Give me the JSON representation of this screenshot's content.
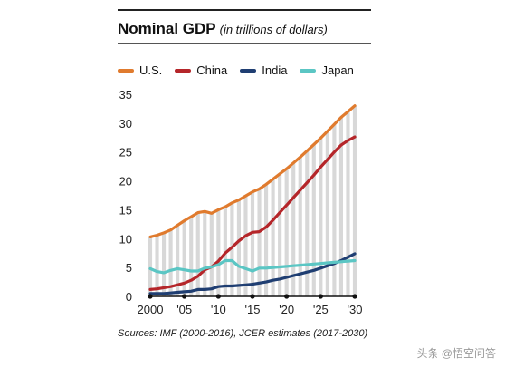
{
  "chart_data": {
    "type": "line",
    "title": "Nominal GDP",
    "subtitle": "(in trillions of dollars)",
    "xlabel": "",
    "ylabel": "",
    "xlim": [
      2000,
      2030
    ],
    "ylim": [
      0,
      35
    ],
    "y_ticks": [
      0,
      5,
      10,
      15,
      20,
      25,
      30,
      35
    ],
    "x_ticks": [
      {
        "value": 2000,
        "label": "2000"
      },
      {
        "value": 2005,
        "label": "'05"
      },
      {
        "value": 2010,
        "label": "'10"
      },
      {
        "value": 2015,
        "label": "'15"
      },
      {
        "value": 2020,
        "label": "'20"
      },
      {
        "value": 2025,
        "label": "'25"
      },
      {
        "value": 2030,
        "label": "'30"
      }
    ],
    "grid": false,
    "legend_position": "top-left",
    "background_bars": {
      "color": "#d8d8d8",
      "x": [
        2000,
        2001,
        2002,
        2003,
        2004,
        2005,
        2006,
        2007,
        2008,
        2009,
        2010,
        2011,
        2012,
        2013,
        2014,
        2015,
        2016,
        2017,
        2018,
        2019,
        2020,
        2021,
        2022,
        2023,
        2024,
        2025,
        2026,
        2027,
        2028,
        2029,
        2030
      ],
      "values": [
        10.3,
        10.6,
        11.0,
        11.5,
        12.3,
        13.1,
        13.8,
        14.5,
        14.7,
        14.4,
        15.0,
        15.5,
        16.2,
        16.7,
        17.4,
        18.1,
        18.6,
        19.4,
        20.3,
        21.2,
        22.1,
        23.1,
        24.1,
        25.2,
        26.3,
        27.4,
        28.6,
        29.8,
        31.0,
        32.0,
        33.0
      ]
    },
    "series": [
      {
        "name": "U.S.",
        "color": "#e07b2e",
        "x": [
          2000,
          2001,
          2002,
          2003,
          2004,
          2005,
          2006,
          2007,
          2008,
          2009,
          2010,
          2011,
          2012,
          2013,
          2014,
          2015,
          2016,
          2017,
          2018,
          2019,
          2020,
          2021,
          2022,
          2023,
          2024,
          2025,
          2026,
          2027,
          2028,
          2029,
          2030
        ],
        "values": [
          10.3,
          10.6,
          11.0,
          11.5,
          12.3,
          13.1,
          13.8,
          14.5,
          14.7,
          14.4,
          15.0,
          15.5,
          16.2,
          16.7,
          17.4,
          18.1,
          18.6,
          19.4,
          20.3,
          21.2,
          22.1,
          23.1,
          24.1,
          25.2,
          26.3,
          27.4,
          28.6,
          29.8,
          31.0,
          32.0,
          33.0
        ]
      },
      {
        "name": "China",
        "color": "#b5262a",
        "x": [
          2000,
          2001,
          2002,
          2003,
          2004,
          2005,
          2006,
          2007,
          2008,
          2009,
          2010,
          2011,
          2012,
          2013,
          2014,
          2015,
          2016,
          2017,
          2018,
          2019,
          2020,
          2021,
          2022,
          2023,
          2024,
          2025,
          2026,
          2027,
          2028,
          2029,
          2030
        ],
        "values": [
          1.2,
          1.3,
          1.5,
          1.7,
          2.0,
          2.3,
          2.8,
          3.5,
          4.6,
          5.1,
          6.1,
          7.5,
          8.5,
          9.6,
          10.5,
          11.1,
          11.2,
          12.0,
          13.2,
          14.5,
          15.8,
          17.1,
          18.4,
          19.7,
          21.0,
          22.4,
          23.7,
          25.0,
          26.2,
          27.0,
          27.6
        ]
      },
      {
        "name": "India",
        "color": "#1f3e72",
        "x": [
          2000,
          2001,
          2002,
          2003,
          2004,
          2005,
          2006,
          2007,
          2008,
          2009,
          2010,
          2011,
          2012,
          2013,
          2014,
          2015,
          2016,
          2017,
          2018,
          2019,
          2020,
          2021,
          2022,
          2023,
          2024,
          2025,
          2026,
          2027,
          2028,
          2029,
          2030
        ],
        "values": [
          0.5,
          0.5,
          0.5,
          0.6,
          0.7,
          0.8,
          0.9,
          1.2,
          1.2,
          1.3,
          1.7,
          1.8,
          1.8,
          1.9,
          2.0,
          2.1,
          2.3,
          2.5,
          2.8,
          3.0,
          3.3,
          3.6,
          3.9,
          4.2,
          4.5,
          4.9,
          5.3,
          5.7,
          6.2,
          6.8,
          7.4
        ]
      },
      {
        "name": "Japan",
        "color": "#5bc6c4",
        "x": [
          2000,
          2001,
          2002,
          2003,
          2004,
          2005,
          2006,
          2007,
          2008,
          2009,
          2010,
          2011,
          2012,
          2013,
          2014,
          2015,
          2016,
          2017,
          2018,
          2019,
          2020,
          2021,
          2022,
          2023,
          2024,
          2025,
          2026,
          2027,
          2028,
          2029,
          2030
        ],
        "values": [
          4.8,
          4.3,
          4.1,
          4.5,
          4.8,
          4.6,
          4.4,
          4.4,
          4.9,
          5.1,
          5.5,
          6.2,
          6.2,
          5.2,
          4.8,
          4.4,
          4.9,
          4.9,
          5.0,
          5.1,
          5.2,
          5.3,
          5.4,
          5.5,
          5.6,
          5.7,
          5.8,
          5.9,
          6.0,
          6.1,
          6.2
        ]
      }
    ],
    "marker_years": [
      2000,
      2005,
      2010,
      2015,
      2020,
      2025,
      2030
    ]
  },
  "source": "Sources: IMF (2000-2016), JCER estimates (2017-2030)",
  "watermark": "头条 @悟空问答"
}
